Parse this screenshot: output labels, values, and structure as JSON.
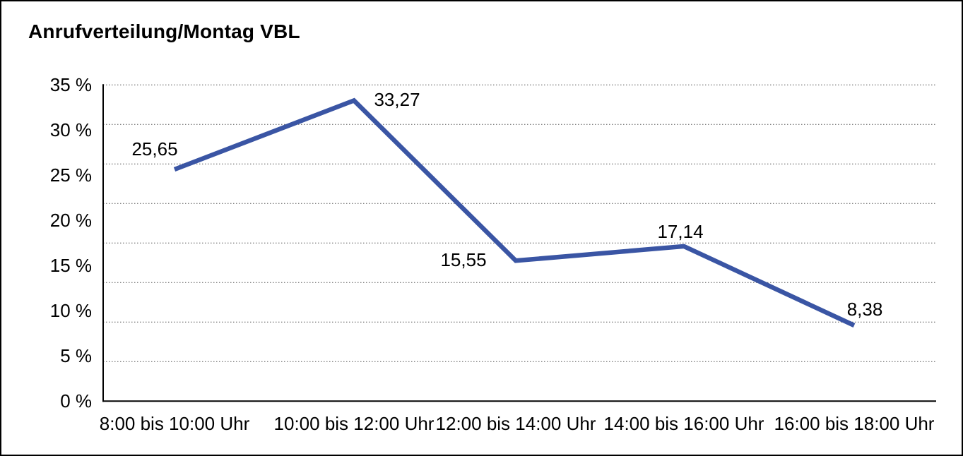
{
  "window": {
    "background_color": "#FFFFFF",
    "border_color": "#000000"
  },
  "chart_data": {
    "type": "line",
    "title": "Anrufverteilung/Montag VBL",
    "categories": [
      "8:00 bis 10:00 Uhr",
      "10:00 bis 12:00 Uhr",
      "12:00 bis 14:00 Uhr",
      "14:00 bis 16:00 Uhr",
      "16:00 bis 18:00 Uhr"
    ],
    "values": [
      25.65,
      33.27,
      15.55,
      17.14,
      8.38
    ],
    "value_labels": [
      "25,65",
      "33,27",
      "15,55",
      "17,14",
      "8,38"
    ],
    "y_tick_labels": [
      "0 %",
      "5 %",
      "10 %",
      "15 %",
      "20 %",
      "25 %",
      "30 %",
      "35 %"
    ],
    "y_tick_values": [
      0,
      5,
      10,
      15,
      20,
      25,
      30,
      35
    ],
    "ylim": [
      0,
      35
    ],
    "xlabel": "",
    "ylabel": "",
    "legend": "none",
    "grid": "horizontal dotted, 8 equal divisions",
    "line_color": "#3A55A4",
    "axis_color": "#000000",
    "gridline_color": "#555555",
    "text_color": "#000000"
  }
}
